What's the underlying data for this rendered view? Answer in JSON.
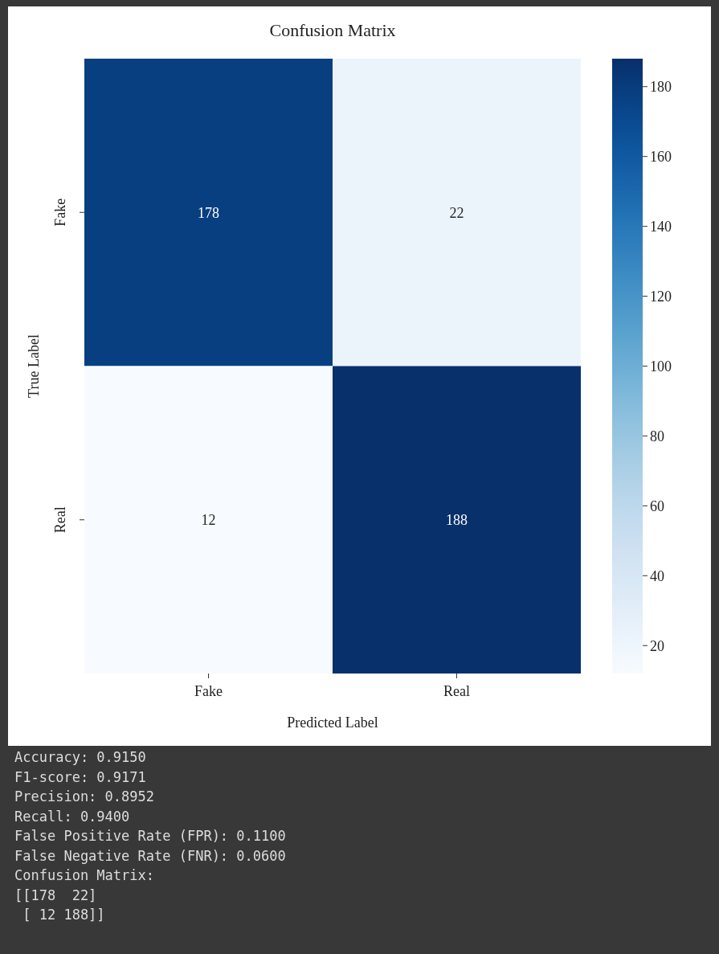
{
  "chart_data": {
    "type": "heatmap",
    "title": "Confusion Matrix",
    "xlabel": "Predicted Label",
    "ylabel": "True Label",
    "categories": [
      "Fake",
      "Real"
    ],
    "y_categories": [
      "Fake",
      "Real"
    ],
    "cells": [
      [
        178,
        22
      ],
      [
        12,
        188
      ]
    ],
    "clim": [
      12,
      188
    ],
    "cticks": [
      20,
      40,
      60,
      80,
      100,
      120,
      140,
      160,
      180
    ],
    "data_labels": true,
    "annotations": [
      "Accuracy: 0.9150",
      "F1-score: 0.9171",
      "Precision: 0.8952",
      "Recall: 0.9400",
      "False Positive Rate (FPR): 0.1100",
      "False Negative Rate (FNR): 0.0600",
      "Confusion Matrix:",
      "[[178  22]",
      " [ 12 188]]"
    ]
  }
}
